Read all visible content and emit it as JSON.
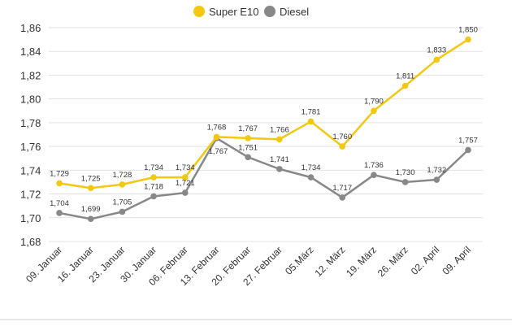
{
  "chart_data": {
    "type": "line",
    "categories": [
      "09. Januar",
      "16. Januar",
      "23. Januar",
      "30. Januar",
      "06. Februar",
      "13. Februar",
      "20. Februar",
      "27. Februar",
      "05.März",
      "12. März",
      "19. März",
      "26. März",
      "02. April",
      "09. April"
    ],
    "series": [
      {
        "name": "Super E10",
        "color": "#f2c811",
        "values": [
          1.729,
          1.725,
          1.728,
          1.734,
          1.734,
          1.768,
          1.767,
          1.766,
          1.781,
          1.76,
          1.79,
          1.811,
          1.833,
          1.85
        ],
        "labels": [
          "1,729",
          "1,725",
          "1,728",
          "1,734",
          "1,734",
          "1,768",
          "1,767",
          "1,766",
          "1,781",
          "1,760",
          "1,790",
          "1,811",
          "1,833",
          "1,850"
        ]
      },
      {
        "name": "Diesel",
        "color": "#888888",
        "values": [
          1.704,
          1.699,
          1.705,
          1.718,
          1.721,
          1.767,
          1.751,
          1.741,
          1.734,
          1.717,
          1.736,
          1.73,
          1.732,
          1.757
        ],
        "labels": [
          "1,704",
          "1,699",
          "1,705",
          "1,718",
          "1,721",
          "1,767",
          "1,751",
          "1,741",
          "1,734",
          "1,717",
          "1,736",
          "1,730",
          "1,732",
          "1,757"
        ]
      }
    ],
    "ylim": [
      1.68,
      1.86
    ],
    "yticks": [
      1.68,
      1.7,
      1.72,
      1.74,
      1.76,
      1.78,
      1.8,
      1.82,
      1.84,
      1.86
    ],
    "ytick_labels": [
      "1,68",
      "1,70",
      "1,72",
      "1,74",
      "1,76",
      "1,78",
      "1,80",
      "1,82",
      "1,84",
      "1,86"
    ],
    "grid": true,
    "legend_position": "top-center",
    "title": "",
    "xlabel": "",
    "ylabel": ""
  }
}
